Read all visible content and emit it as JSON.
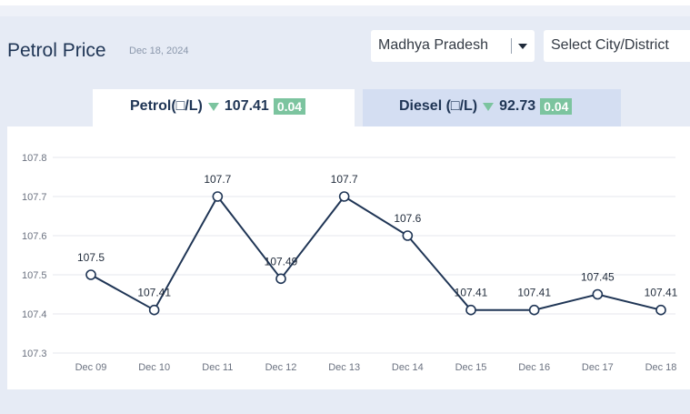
{
  "header": {
    "title": "Petrol Price",
    "date": "Dec 18, 2024",
    "state_select": "Madhya Pradesh",
    "city_select": "Select City/District"
  },
  "tabs": {
    "petrol": {
      "label": "Petrol(□/L)",
      "price": "107.41",
      "change": "0.04",
      "trend": "down"
    },
    "diesel": {
      "label": "Diesel (□/L)",
      "price": "92.73",
      "change": "0.04",
      "trend": "down"
    }
  },
  "colors": {
    "line": "#1f3555",
    "badge": "#7cc49f",
    "grid": "#e4e7ec"
  },
  "chart_data": {
    "type": "line",
    "categories": [
      "Dec 09",
      "Dec 10",
      "Dec 11",
      "Dec 12",
      "Dec 13",
      "Dec 14",
      "Dec 15",
      "Dec 16",
      "Dec 17",
      "Dec 18"
    ],
    "values": [
      107.5,
      107.41,
      107.7,
      107.49,
      107.7,
      107.6,
      107.41,
      107.41,
      107.45,
      107.41
    ],
    "data_labels": [
      "107.5",
      "107.41",
      "107.7",
      "107.49",
      "107.7",
      "107.6",
      "107.41",
      "107.41",
      "107.45",
      "107.41"
    ],
    "y_ticks": [
      "107.3",
      "107.4",
      "107.5",
      "107.6",
      "107.7",
      "107.8"
    ],
    "ylim": [
      107.3,
      107.8
    ],
    "grid": true,
    "title": "",
    "xlabel": "",
    "ylabel": ""
  }
}
